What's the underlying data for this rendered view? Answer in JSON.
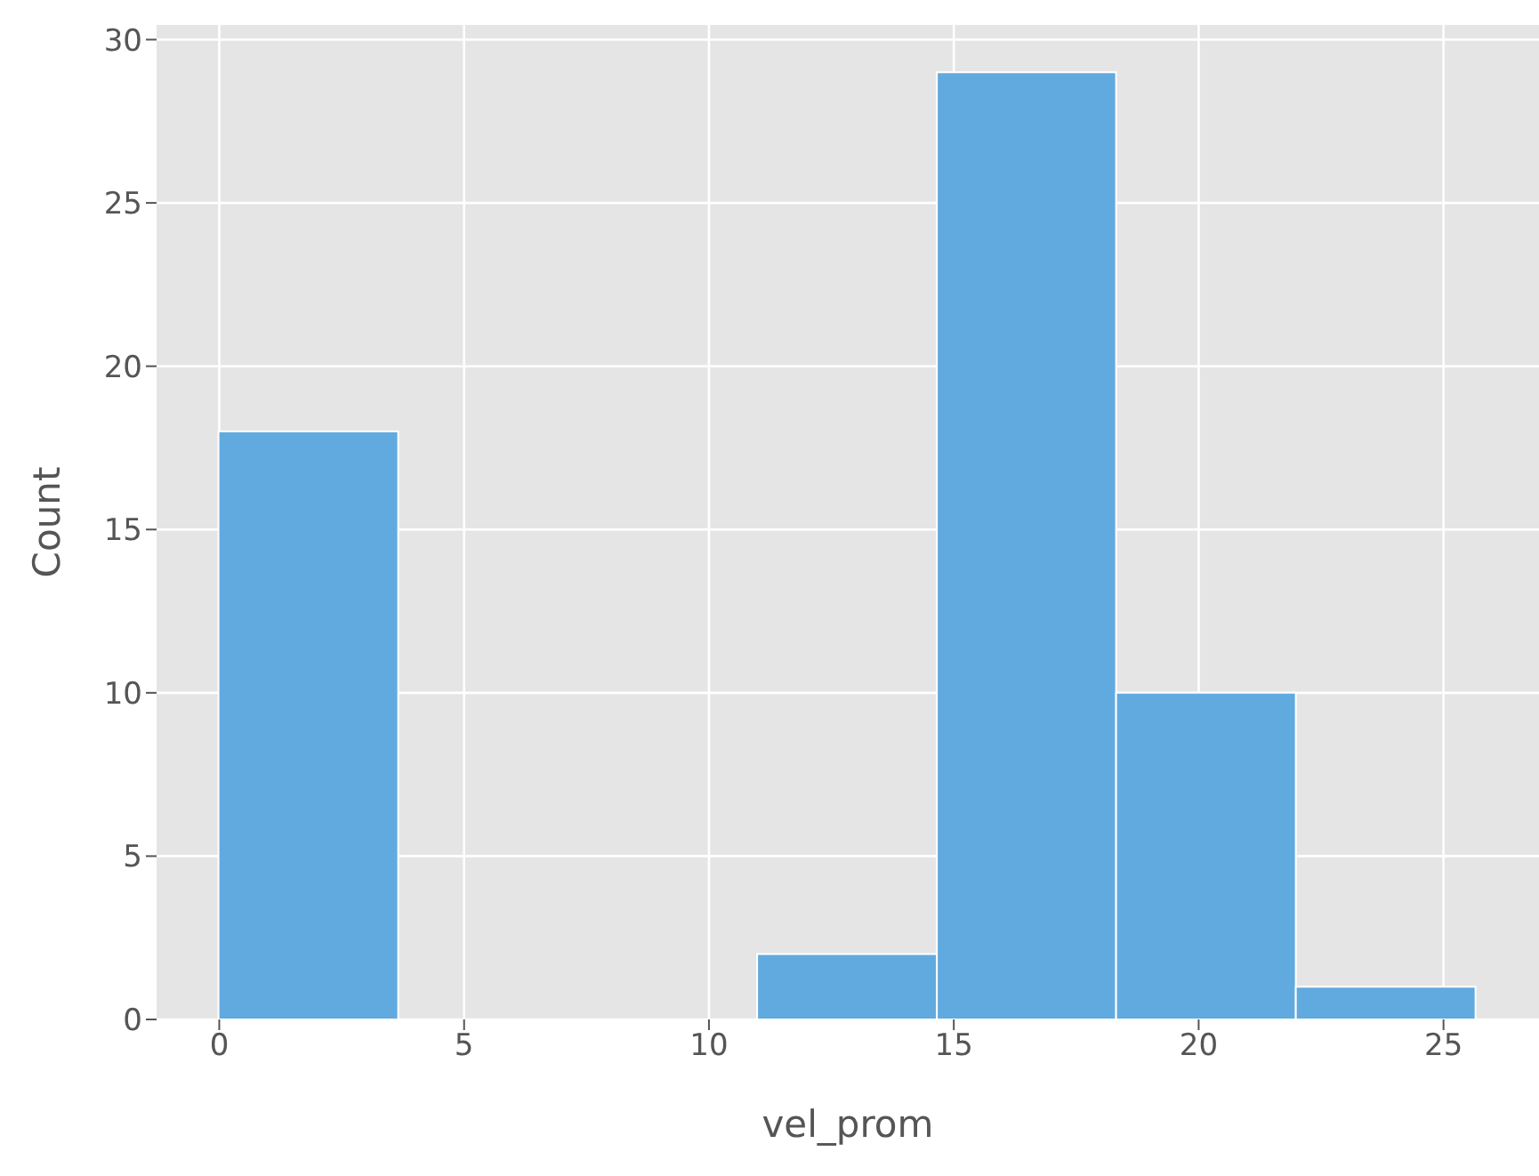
{
  "chart_data": {
    "type": "histogram",
    "xlabel": "vel_prom",
    "ylabel": "Count",
    "bins": [
      0,
      3.67,
      11,
      14.67,
      18.33,
      22,
      25.67
    ],
    "values": [
      18,
      0,
      2,
      29,
      10,
      1
    ],
    "color": "#61aadf",
    "xlim": [
      -1.28,
      26.95
    ],
    "xticks": [
      0,
      5,
      10,
      15,
      20,
      25
    ],
    "ylim": [
      0,
      30.45
    ],
    "yticks": [
      0,
      5,
      10,
      15,
      20,
      25,
      30
    ],
    "grid": true
  }
}
